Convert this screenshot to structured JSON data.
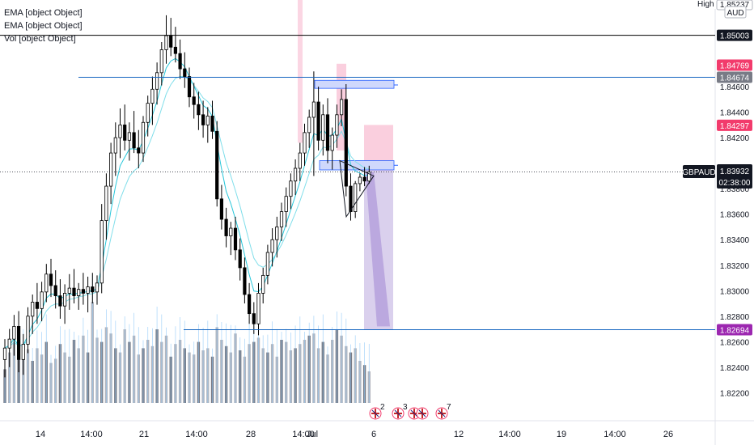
{
  "legend": {
    "line1": "EMA [object Object]",
    "line2": "EMA [object Object]",
    "line3": "Vol [object Object]"
  },
  "axis": {
    "currency": "AUD",
    "high_tag": "High",
    "high_value": "1.85237",
    "symbol": "GBPAUD",
    "last_price": "1.83932",
    "countdown": "02:38:00"
  },
  "colors": {
    "bg": "#ffffff",
    "candle": "#000000",
    "ema1": "#26c6da",
    "ema2": "#80deea",
    "volume_wick": "#90caf9",
    "hline_blue": "#1565c0",
    "hline_black": "#000000",
    "label_pink": "#f23b6c",
    "label_purple": "#9c27b0",
    "label_gray": "#787b86",
    "zone_pink": "#f8bbd0",
    "zone_purple": "#d1c4e9"
  },
  "chart_data": {
    "type": "candlestick",
    "symbol": "GBPAUD",
    "y_ticks": [
      1.846,
      1.844,
      1.842,
      1.838,
      1.836,
      1.834,
      1.832,
      1.83,
      1.828,
      1.826,
      1.824,
      1.822
    ],
    "y_tick_labels": [
      "1.84600",
      "1.84400",
      "1.84200",
      "1.83800",
      "1.83600",
      "1.83400",
      "1.83200",
      "1.83000",
      "1.82800",
      "1.82600",
      "1.82400",
      "1.82200"
    ],
    "ylim": [
      1.8198,
      1.8528
    ],
    "x_ticks": [
      "14",
      "14:00",
      "21",
      "14:00",
      "28",
      "14:00",
      "Jul",
      "6",
      "12",
      "14:00",
      "19",
      "14:00",
      "26"
    ],
    "price_levels": [
      {
        "label": "1.85003",
        "price": 1.85003,
        "color": "#131722",
        "line": "#000000"
      },
      {
        "label": "1.84769",
        "price": 1.84769,
        "color": "#f23b6c",
        "line": null
      },
      {
        "label": "1.84674",
        "price": 1.84674,
        "color": "#787b86",
        "line": "#1565c0"
      },
      {
        "label": "1.84297",
        "price": 1.84297,
        "color": "#f23b6c",
        "line": null
      },
      {
        "label": "1.82694",
        "price": 1.82694,
        "color": "#9c27b0",
        "line": "#1565c0"
      }
    ],
    "last_price": 1.83932,
    "candles": [
      [
        1.8246,
        1.8262,
        1.8232,
        1.8255
      ],
      [
        1.8255,
        1.827,
        1.824,
        1.8262
      ],
      [
        1.8262,
        1.8281,
        1.8249,
        1.8272
      ],
      [
        1.8272,
        1.8284,
        1.8236,
        1.8246
      ],
      [
        1.8246,
        1.8266,
        1.8234,
        1.8258
      ],
      [
        1.8258,
        1.8287,
        1.8251,
        1.828
      ],
      [
        1.828,
        1.8297,
        1.8266,
        1.8291
      ],
      [
        1.8291,
        1.8306,
        1.8274,
        1.8286
      ],
      [
        1.8286,
        1.8307,
        1.8276,
        1.8299
      ],
      [
        1.8299,
        1.8321,
        1.8291,
        1.8313
      ],
      [
        1.8313,
        1.8325,
        1.8295,
        1.8304
      ],
      [
        1.8304,
        1.8316,
        1.8286,
        1.8296
      ],
      [
        1.8296,
        1.8309,
        1.8278,
        1.8288
      ],
      [
        1.8288,
        1.8305,
        1.8274,
        1.8298
      ],
      [
        1.8298,
        1.8313,
        1.8285,
        1.8302
      ],
      [
        1.8302,
        1.8317,
        1.829,
        1.8296
      ],
      [
        1.8296,
        1.8306,
        1.8285,
        1.8301
      ],
      [
        1.8301,
        1.8314,
        1.8289,
        1.8298
      ],
      [
        1.8298,
        1.8311,
        1.8283,
        1.8303
      ],
      [
        1.8303,
        1.8314,
        1.829,
        1.8299
      ],
      [
        1.8299,
        1.8312,
        1.8289,
        1.8306
      ],
      [
        1.8306,
        1.8368,
        1.8298,
        1.8355
      ],
      [
        1.8355,
        1.8392,
        1.834,
        1.8382
      ],
      [
        1.8382,
        1.8416,
        1.8368,
        1.8408
      ],
      [
        1.8408,
        1.8432,
        1.839,
        1.842
      ],
      [
        1.842,
        1.8443,
        1.8404,
        1.843
      ],
      [
        1.843,
        1.8446,
        1.841,
        1.8418
      ],
      [
        1.8418,
        1.8432,
        1.8402,
        1.8424
      ],
      [
        1.8424,
        1.8441,
        1.8408,
        1.8412
      ],
      [
        1.8412,
        1.8426,
        1.8396,
        1.8408
      ],
      [
        1.8408,
        1.8437,
        1.8401,
        1.8432
      ],
      [
        1.8432,
        1.8453,
        1.8421,
        1.8447
      ],
      [
        1.8447,
        1.8468,
        1.843,
        1.8458
      ],
      [
        1.8458,
        1.8479,
        1.8446,
        1.8471
      ],
      [
        1.8471,
        1.8495,
        1.8461,
        1.8489
      ],
      [
        1.8489,
        1.8516,
        1.8478,
        1.85
      ],
      [
        1.85,
        1.8514,
        1.8484,
        1.8491
      ],
      [
        1.8491,
        1.8507,
        1.8479,
        1.8486
      ],
      [
        1.8486,
        1.8497,
        1.8466,
        1.8474
      ],
      [
        1.8474,
        1.8487,
        1.8459,
        1.8468
      ],
      [
        1.8468,
        1.8475,
        1.8444,
        1.8452
      ],
      [
        1.8452,
        1.8463,
        1.8435,
        1.8446
      ],
      [
        1.8446,
        1.8456,
        1.8426,
        1.8438
      ],
      [
        1.8438,
        1.8449,
        1.842,
        1.843
      ],
      [
        1.843,
        1.8444,
        1.8416,
        1.8437
      ],
      [
        1.8437,
        1.8449,
        1.8419,
        1.8425
      ],
      [
        1.8425,
        1.8433,
        1.8366,
        1.8372
      ],
      [
        1.8372,
        1.8383,
        1.8348,
        1.8356
      ],
      [
        1.8356,
        1.8365,
        1.8334,
        1.8343
      ],
      [
        1.8343,
        1.8354,
        1.8328,
        1.8349
      ],
      [
        1.8349,
        1.8358,
        1.8324,
        1.8332
      ],
      [
        1.8332,
        1.8341,
        1.8308,
        1.8318
      ],
      [
        1.8318,
        1.8326,
        1.829,
        1.8297
      ],
      [
        1.8297,
        1.8306,
        1.8274,
        1.8282
      ],
      [
        1.8282,
        1.8291,
        1.8266,
        1.8274
      ],
      [
        1.8274,
        1.8306,
        1.8265,
        1.8298
      ],
      [
        1.8298,
        1.8318,
        1.829,
        1.8312
      ],
      [
        1.8312,
        1.8336,
        1.8305,
        1.833
      ],
      [
        1.833,
        1.8349,
        1.8319,
        1.834
      ],
      [
        1.834,
        1.8358,
        1.8326,
        1.835
      ],
      [
        1.835,
        1.8369,
        1.8339,
        1.8362
      ],
      [
        1.8362,
        1.8381,
        1.835,
        1.8374
      ],
      [
        1.8374,
        1.8392,
        1.8364,
        1.8386
      ],
      [
        1.8386,
        1.8403,
        1.8375,
        1.8396
      ],
      [
        1.8396,
        1.8416,
        1.8386,
        1.8408
      ],
      [
        1.8408,
        1.8431,
        1.8398,
        1.8424
      ],
      [
        1.8424,
        1.8442,
        1.8412,
        1.8436
      ],
      [
        1.8436,
        1.8472,
        1.839,
        1.8448
      ],
      [
        1.8448,
        1.846,
        1.841,
        1.8418
      ],
      [
        1.8418,
        1.8446,
        1.8406,
        1.8438
      ],
      [
        1.8438,
        1.8451,
        1.84,
        1.841
      ],
      [
        1.841,
        1.8428,
        1.8395,
        1.8422
      ],
      [
        1.8422,
        1.8446,
        1.8412,
        1.8438
      ],
      [
        1.8438,
        1.8458,
        1.8429,
        1.845
      ],
      [
        1.845,
        1.8462,
        1.8374,
        1.8382
      ],
      [
        1.8382,
        1.8392,
        1.8355,
        1.8362
      ],
      [
        1.8362,
        1.8386,
        1.8357,
        1.8384
      ],
      [
        1.8384,
        1.8392,
        1.8378,
        1.8389
      ],
      [
        1.8389,
        1.8397,
        1.8382,
        1.8386
      ],
      [
        1.8386,
        1.8398,
        1.8384,
        1.8393
      ]
    ],
    "volume": [
      32,
      48,
      58,
      42,
      44,
      51,
      40,
      52,
      46,
      58,
      38,
      42,
      56,
      48,
      44,
      60,
      52,
      64,
      48,
      96,
      62,
      58,
      72,
      66,
      52,
      48,
      70,
      58,
      64,
      46,
      52,
      60,
      54,
      70,
      58,
      64,
      44,
      56,
      60,
      52,
      48,
      46,
      58,
      50,
      52,
      44,
      72,
      60,
      54,
      48,
      66,
      50,
      44,
      56,
      58,
      62,
      52,
      48,
      56,
      44,
      60,
      58,
      50,
      52,
      56,
      60,
      64,
      66,
      52,
      58,
      46,
      60,
      70,
      64,
      54,
      48,
      52,
      40,
      36,
      30
    ],
    "events": [
      {
        "icon": "flag-gb-icon",
        "count": "2"
      },
      {
        "icon": "flag-gb-icon",
        "count": "3"
      },
      {
        "icon": "flag-gb-icon",
        "count": ""
      },
      {
        "icon": "flag-gb-icon",
        "count": ""
      },
      {
        "icon": "flag-gb-icon",
        "count": "7"
      }
    ]
  }
}
